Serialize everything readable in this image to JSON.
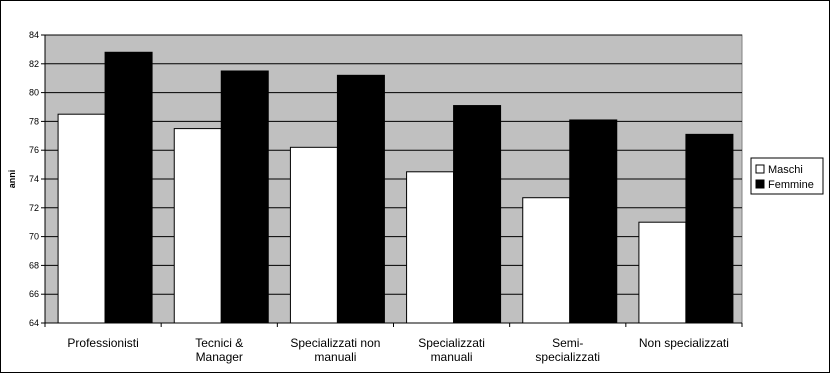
{
  "chart_data": {
    "type": "bar",
    "title": "",
    "xlabel": "",
    "ylabel": "anni",
    "ylim": [
      64,
      84
    ],
    "yticks": [
      64,
      66,
      68,
      70,
      72,
      74,
      76,
      78,
      80,
      82,
      84
    ],
    "grid": true,
    "legend_position": "right",
    "categories": [
      [
        "Professionisti"
      ],
      [
        "Tecnici &",
        "Manager"
      ],
      [
        "Specializzati non",
        "manuali"
      ],
      [
        "Specializzati",
        "manuali"
      ],
      [
        "Semi-",
        "specializzati"
      ],
      [
        "Non specializzati"
      ]
    ],
    "series": [
      {
        "name": "Maschi",
        "color": "#ffffff",
        "values": [
          78.5,
          77.5,
          76.2,
          74.5,
          72.7,
          71.0
        ]
      },
      {
        "name": "Femmine",
        "color": "#000000",
        "values": [
          82.8,
          81.5,
          81.2,
          79.1,
          78.1,
          77.1
        ]
      }
    ],
    "colors": {
      "plot_background": "#c0c0c0",
      "gridline": "#000000"
    }
  }
}
